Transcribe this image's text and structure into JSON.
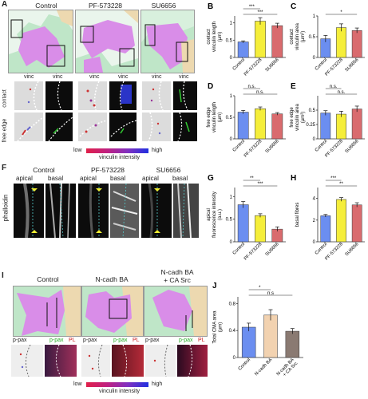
{
  "panels": {
    "A": {
      "label": "A",
      "headers": [
        "Control",
        "PF-573228",
        "SU6656"
      ],
      "row_labels": [
        "contact",
        "free edge"
      ],
      "sub_labels": [
        "vinc",
        "vinc",
        "vinc",
        "vinc",
        "vinc",
        "vinc"
      ],
      "scale_low": "low",
      "scale_high": "high",
      "scale_title": "vinculin intensity"
    },
    "F": {
      "label": "F",
      "headers": [
        "Control",
        "PF-573228",
        "SU6656"
      ],
      "sub_labels": [
        "apical",
        "basal",
        "apical",
        "basal",
        "apical",
        "basal"
      ],
      "row_label": "phalloidin"
    },
    "I": {
      "label": "I",
      "headers": [
        "Control",
        "N-cadh BA",
        "N-cadh BA\n+ CA Src"
      ],
      "sub_labels": [
        "p-pax",
        "p-pax",
        "PL",
        "p-pax",
        "p-pax",
        "PL",
        "p-pax",
        "p-pax",
        "PL"
      ],
      "scale_low": "low",
      "scale_high": "high",
      "scale_title": "vinculin intensity"
    }
  },
  "colors": {
    "control": "#6b8ef0",
    "pf": "#f5ee3a",
    "su": "#d96b6e",
    "ncadh": "#f2d2b0",
    "ncadhsrc": "#8a7a72",
    "cell_magenta": "#d98de8",
    "cell_green": "#bfe6c8",
    "cell_tan": "#edd9b0"
  },
  "chart_data": [
    {
      "label": "B",
      "type": "bar",
      "categories": [
        "Control",
        "PF-573228",
        "SU6656"
      ],
      "values": [
        0.45,
        1.05,
        0.92
      ],
      "errors": [
        0.03,
        0.1,
        0.07
      ],
      "ylim": [
        0,
        1.2
      ],
      "yticks": [
        0,
        0.5,
        1
      ],
      "ylabel": "contact\nvinculin length\n(µm)",
      "sig": [
        {
          "from": 0,
          "to": 1,
          "text": "***"
        },
        {
          "from": 0,
          "to": 2,
          "text": "***"
        }
      ],
      "colors": [
        "#6b8ef0",
        "#f5ee3a",
        "#d96b6e"
      ]
    },
    {
      "label": "C",
      "type": "bar",
      "categories": [
        "Control",
        "PF-573228",
        "SU6656"
      ],
      "values": [
        0.45,
        0.72,
        0.65
      ],
      "errors": [
        0.08,
        0.09,
        0.06
      ],
      "ylim": [
        0,
        1
      ],
      "yticks": [
        0,
        0.5,
        1
      ],
      "ylabel": "contact\nvinculin area\n(µm²)",
      "sig": [
        {
          "from": 0,
          "to": 2,
          "text": "*"
        }
      ],
      "colors": [
        "#6b8ef0",
        "#f5ee3a",
        "#d96b6e"
      ]
    },
    {
      "label": "D",
      "type": "bar",
      "categories": [
        "Control",
        "PF-573228",
        "SU6656"
      ],
      "values": [
        0.62,
        0.7,
        0.58
      ],
      "errors": [
        0.04,
        0.04,
        0.03
      ],
      "ylim": [
        0,
        1
      ],
      "yticks": [
        0,
        0.5,
        1
      ],
      "ylabel": "free edge\nvinculin length\n(µm)",
      "sig": [
        {
          "from": 0,
          "to": 1,
          "text": "n.s."
        },
        {
          "from": 0,
          "to": 2,
          "text": "n.s."
        }
      ],
      "colors": [
        "#6b8ef0",
        "#f5ee3a",
        "#d96b6e"
      ]
    },
    {
      "label": "E",
      "type": "bar",
      "categories": [
        "Control",
        "PF-573228",
        "SU6656"
      ],
      "values": [
        0.45,
        0.43,
        0.52
      ],
      "errors": [
        0.04,
        0.05,
        0.05
      ],
      "ylim": [
        0,
        0.75
      ],
      "yticks": [
        0,
        0.25,
        0.5
      ],
      "ylabel": "free edge\nvinculin area\n(µm²)",
      "sig": [
        {
          "from": 0,
          "to": 1,
          "text": "n.s."
        },
        {
          "from": 0,
          "to": 2,
          "text": "n.s."
        }
      ],
      "colors": [
        "#6b8ef0",
        "#f5ee3a",
        "#d96b6e"
      ]
    },
    {
      "label": "G",
      "type": "bar",
      "categories": [
        "Control",
        "PF-573228",
        "SU6656"
      ],
      "values": [
        0.82,
        0.58,
        0.28
      ],
      "errors": [
        0.07,
        0.04,
        0.05
      ],
      "ylim": [
        0,
        1.2
      ],
      "yticks": [
        0,
        0.5,
        1
      ],
      "ylabel": "apical\nfluorescence intensity\n(a.u.)",
      "sig": [
        {
          "from": 0,
          "to": 1,
          "text": "**"
        },
        {
          "from": 0,
          "to": 2,
          "text": "***"
        }
      ],
      "colors": [
        "#6b8ef0",
        "#f5ee3a",
        "#d96b6e"
      ]
    },
    {
      "label": "H",
      "type": "bar",
      "categories": [
        "Control",
        "PF-573228",
        "SU6656"
      ],
      "values": [
        2.4,
        3.9,
        3.4
      ],
      "errors": [
        0.12,
        0.17,
        0.2
      ],
      "ylim": [
        0,
        5
      ],
      "yticks": [
        0,
        2,
        4
      ],
      "ylabel": "basal fibres",
      "sig": [
        {
          "from": 0,
          "to": 1,
          "text": "***"
        },
        {
          "from": 0,
          "to": 2,
          "text": "**"
        }
      ],
      "colors": [
        "#6b8ef0",
        "#f5ee3a",
        "#d96b6e"
      ]
    },
    {
      "label": "J",
      "type": "bar",
      "categories": [
        "Control",
        "N-cadh BA",
        "N-cadh BA\n+ CA Src"
      ],
      "values": [
        0.45,
        0.63,
        0.39
      ],
      "errors": [
        0.06,
        0.08,
        0.04
      ],
      "ylim": [
        0,
        0.9
      ],
      "yticks": [
        0,
        0.4,
        0.8
      ],
      "ylabel": "Total CMA area\n(µm)",
      "sig": [
        {
          "from": 0,
          "to": 1,
          "text": "*"
        },
        {
          "from": 0,
          "to": 2,
          "text": "n.s"
        }
      ],
      "colors": [
        "#6b8ef0",
        "#f2d2b0",
        "#8a7a72"
      ]
    }
  ]
}
